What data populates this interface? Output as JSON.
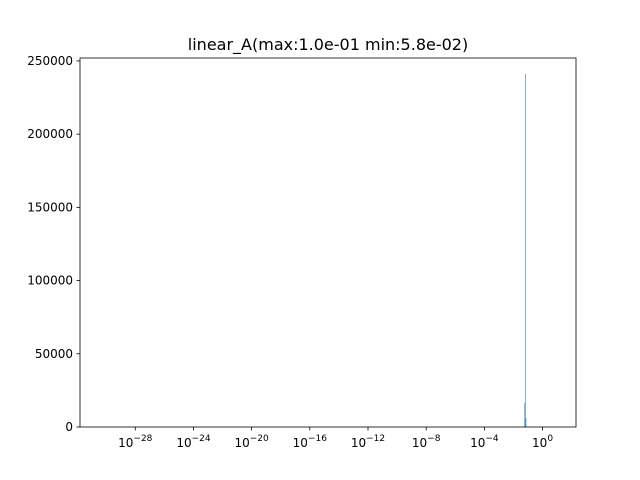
{
  "chart_data": {
    "type": "bar",
    "title": "linear_A(max:1.0e-01 min:5.8e-02)",
    "xlabel": "",
    "ylabel": "",
    "xscale": "log",
    "xlim_log10": [
      -31.8,
      2.3
    ],
    "ylim": [
      0,
      252000
    ],
    "grid": false,
    "bar_color": "#1f77b4",
    "x_ticks": [
      {
        "base": "10",
        "exp": "−28",
        "log10": -28
      },
      {
        "base": "10",
        "exp": "−24",
        "log10": -24
      },
      {
        "base": "10",
        "exp": "−20",
        "log10": -20
      },
      {
        "base": "10",
        "exp": "−16",
        "log10": -16
      },
      {
        "base": "10",
        "exp": "−12",
        "log10": -12
      },
      {
        "base": "10",
        "exp": "−8",
        "log10": -8
      },
      {
        "base": "10",
        "exp": "−4",
        "log10": -4
      },
      {
        "base": "10",
        "exp": "0",
        "log10": 0
      }
    ],
    "y_ticks": [
      {
        "label": "0",
        "value": 0
      },
      {
        "label": "50000",
        "value": 50000
      },
      {
        "label": "100000",
        "value": 100000
      },
      {
        "label": "150000",
        "value": 150000
      },
      {
        "label": "200000",
        "value": 200000
      },
      {
        "label": "250000",
        "value": 250000
      }
    ],
    "bins": [
      {
        "x0": 0.0575,
        "x1": 0.063,
        "count": 16500
      },
      {
        "x0": 0.063,
        "x1": 0.069,
        "count": 241000
      },
      {
        "x0": 0.069,
        "x1": 0.0755,
        "count": 6000
      },
      {
        "x0": 0.0755,
        "x1": 0.0825,
        "count": 400
      },
      {
        "x0": 0.0825,
        "x1": 0.09,
        "count": 150
      },
      {
        "x0": 0.09,
        "x1": 0.1,
        "count": 60
      }
    ]
  }
}
